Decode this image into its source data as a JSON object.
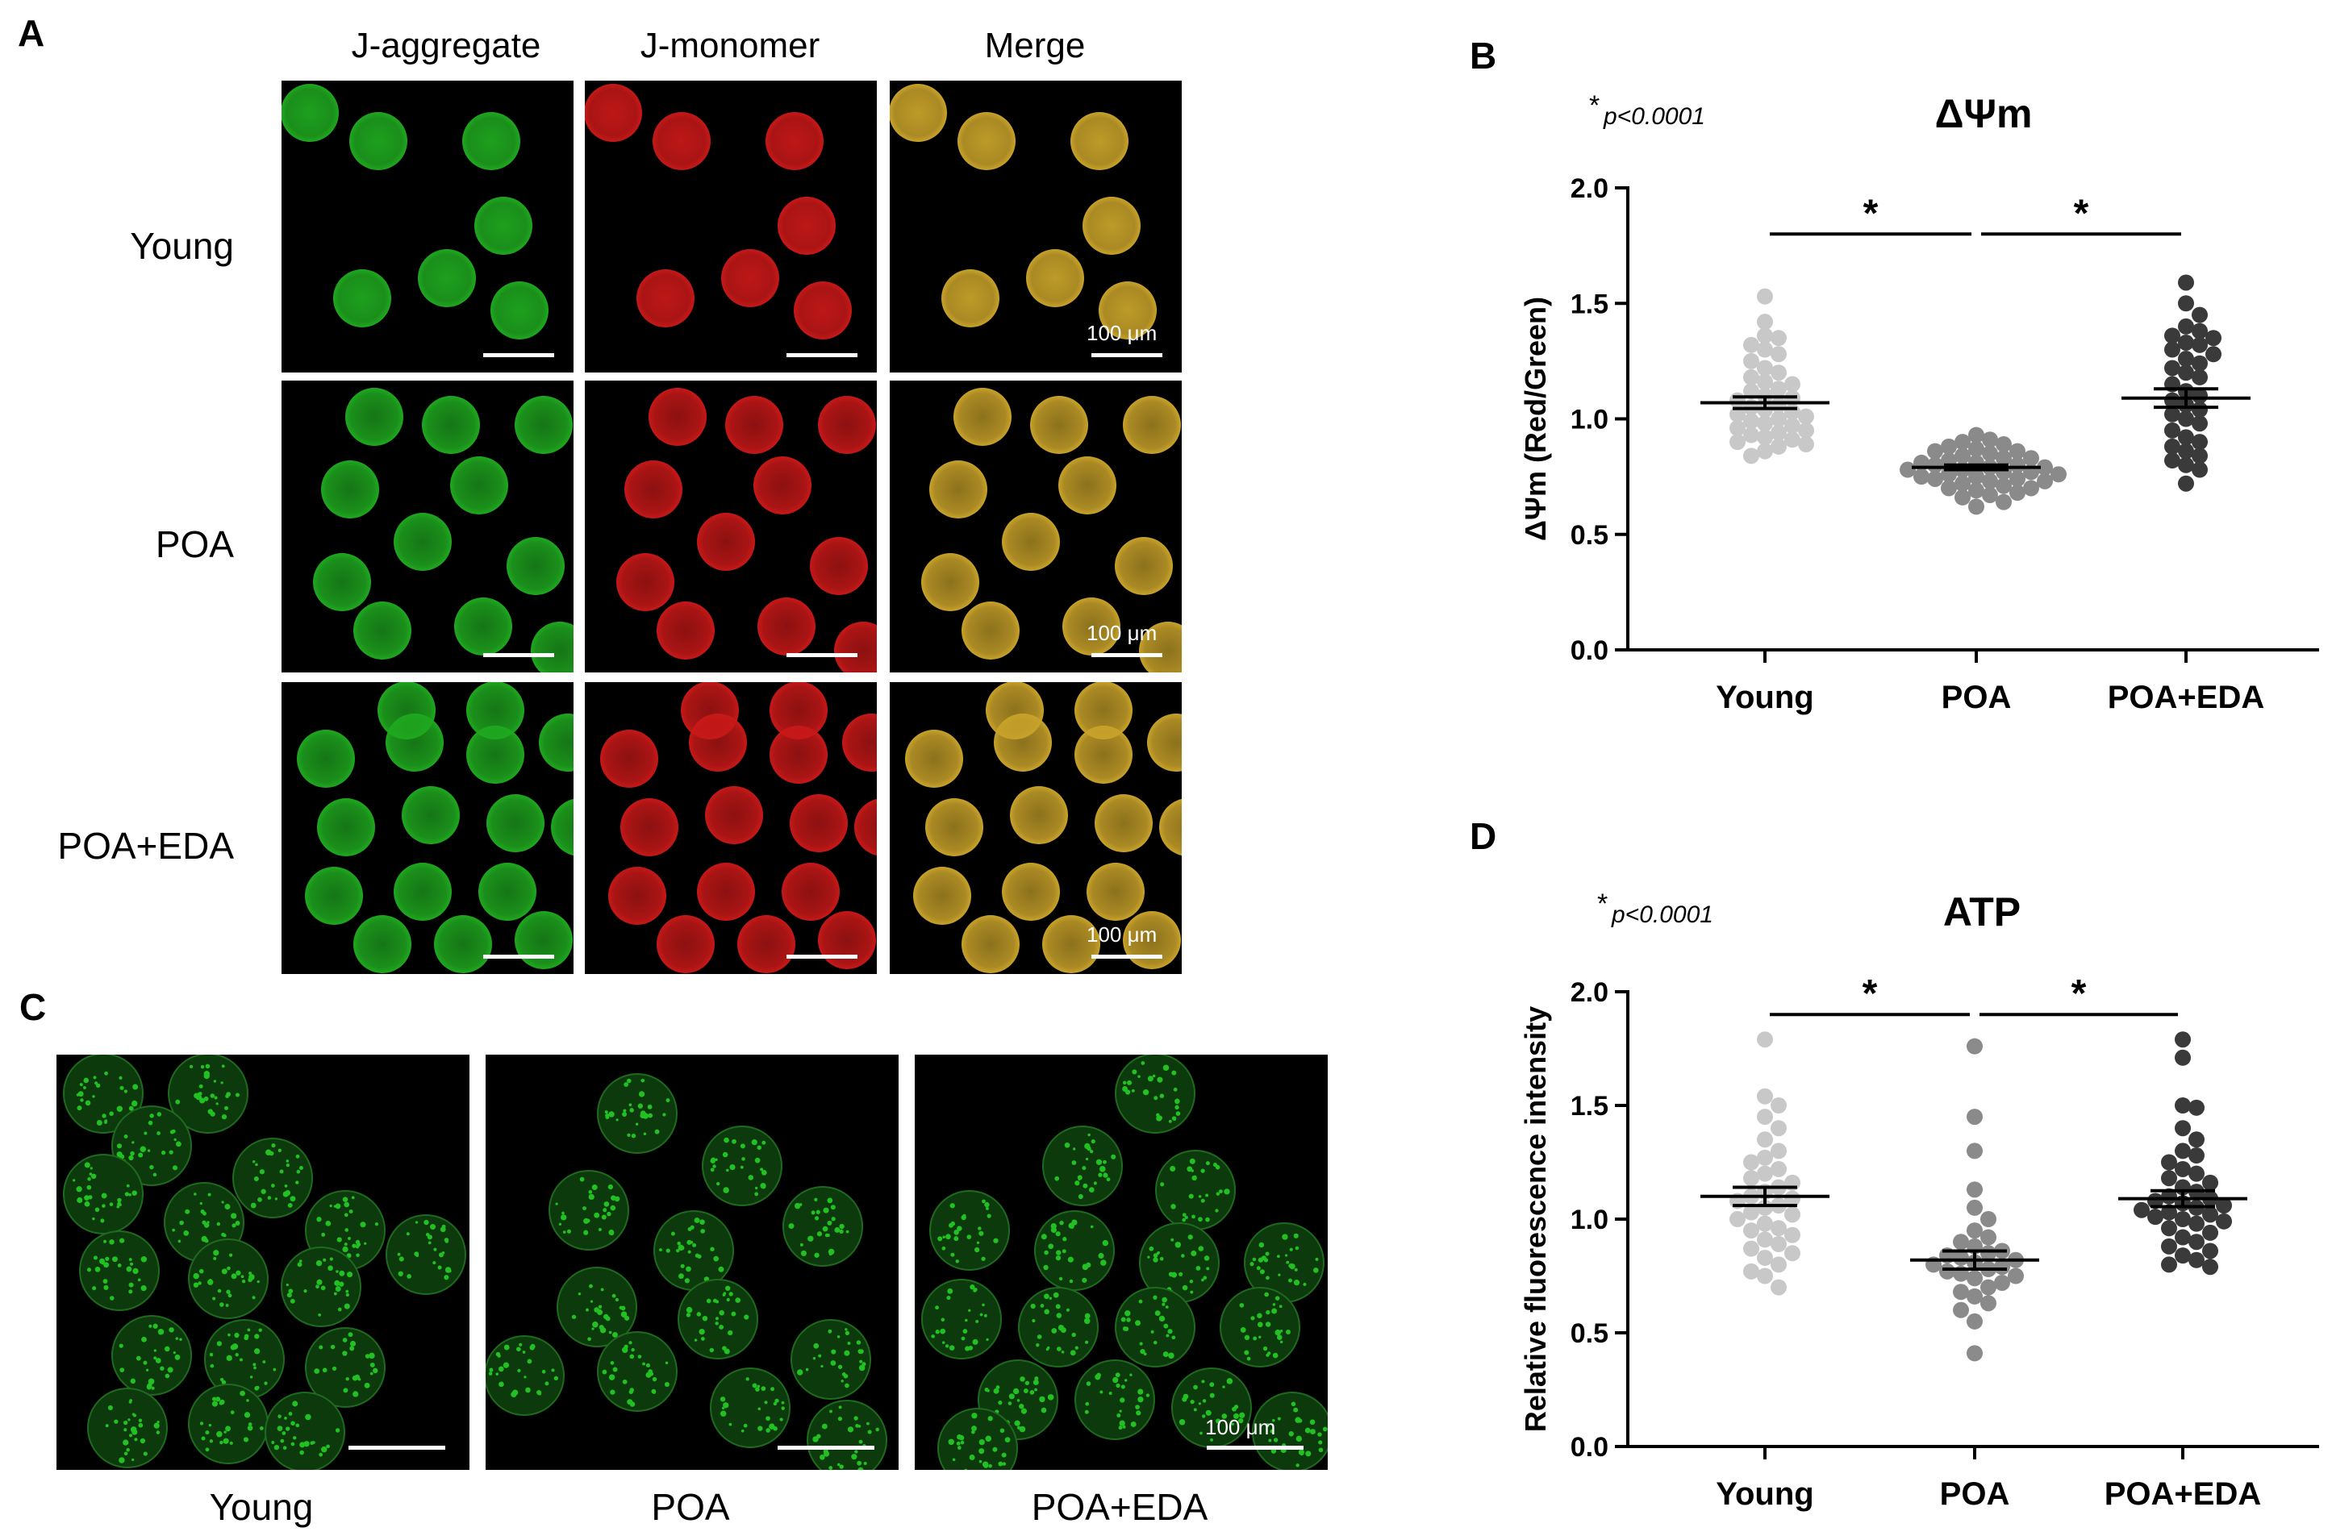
{
  "panel_letters": {
    "a": "A",
    "b": "B",
    "c": "C",
    "d": "D"
  },
  "panel_a": {
    "col_headers": [
      "J-aggregate",
      "J-monomer",
      "Merge"
    ],
    "row_labels": [
      "Young",
      "POA",
      "POA+EDA"
    ],
    "scale_label": "100 μm",
    "colors": {
      "aggregate": "#1fa81f",
      "monomer": "#c81818",
      "merge": "#c8a22a"
    }
  },
  "panel_c": {
    "labels": [
      "Young",
      "POA",
      "POA+EDA"
    ],
    "scale_label": "100 μm",
    "color": "#22c022"
  },
  "chart_data": [
    {
      "type": "scatter",
      "panel": "B",
      "title": "ΔΨm",
      "stat_note_star": "*",
      "stat_note": "p<0.0001",
      "ylabel": "ΔΨm (Red/Green)",
      "xlabel": "",
      "categories": [
        "Young",
        "POA",
        "POA+EDA"
      ],
      "ylim": [
        0,
        2.0
      ],
      "yticks": [
        0.0,
        0.5,
        1.0,
        1.5,
        2.0
      ],
      "ytick_labels": [
        "0.0",
        "0.5",
        "1.0",
        "1.5",
        "2.0"
      ],
      "means": [
        1.07,
        0.79,
        1.09
      ],
      "sem": [
        0.025,
        0.01,
        0.04
      ],
      "significance": [
        {
          "from": 0,
          "to": 1,
          "label": "*",
          "y": 1.8
        },
        {
          "from": 1,
          "to": 2,
          "label": "*",
          "y": 1.8
        }
      ],
      "colors": [
        "#c8c8c8",
        "#8a8a8a",
        "#3a3a3a"
      ],
      "series": [
        {
          "name": "Young",
          "values": [
            1.53,
            1.42,
            1.36,
            1.35,
            1.32,
            1.3,
            1.28,
            1.25,
            1.22,
            1.2,
            1.18,
            1.16,
            1.15,
            1.13,
            1.12,
            1.1,
            1.09,
            1.08,
            1.06,
            1.05,
            1.04,
            1.03,
            1.02,
            1.01,
            1.0,
            0.99,
            0.98,
            0.97,
            0.96,
            0.95,
            0.94,
            0.93,
            0.92,
            0.91,
            0.9,
            0.89,
            0.88,
            0.86,
            0.84
          ]
        },
        {
          "name": "POA",
          "values": [
            0.93,
            0.91,
            0.9,
            0.89,
            0.88,
            0.87,
            0.86,
            0.86,
            0.85,
            0.84,
            0.83,
            0.83,
            0.82,
            0.81,
            0.81,
            0.8,
            0.8,
            0.79,
            0.79,
            0.78,
            0.78,
            0.77,
            0.77,
            0.76,
            0.76,
            0.75,
            0.75,
            0.74,
            0.74,
            0.73,
            0.73,
            0.72,
            0.71,
            0.7,
            0.7,
            0.69,
            0.68,
            0.67,
            0.66,
            0.64,
            0.62
          ]
        },
        {
          "name": "POA+EDA",
          "values": [
            1.59,
            1.5,
            1.45,
            1.4,
            1.38,
            1.36,
            1.35,
            1.33,
            1.32,
            1.3,
            1.28,
            1.26,
            1.24,
            1.22,
            1.2,
            1.18,
            1.15,
            1.12,
            1.1,
            1.08,
            1.06,
            1.04,
            1.02,
            1.0,
            0.98,
            0.95,
            0.92,
            0.9,
            0.88,
            0.86,
            0.84,
            0.82,
            0.8,
            0.78,
            0.72
          ]
        }
      ]
    },
    {
      "type": "scatter",
      "panel": "D",
      "title": "ATP",
      "stat_note_star": "*",
      "stat_note": "p<0.0001",
      "ylabel": "Relative fluorescence intensity",
      "xlabel": "",
      "categories": [
        "Young",
        "POA",
        "POA+EDA"
      ],
      "ylim": [
        0,
        2.0
      ],
      "yticks": [
        0.0,
        0.5,
        1.0,
        1.5,
        2.0
      ],
      "ytick_labels": [
        "0.0",
        "0.5",
        "1.0",
        "1.5",
        "2.0"
      ],
      "means": [
        1.1,
        0.82,
        1.09
      ],
      "sem": [
        0.04,
        0.04,
        0.035
      ],
      "significance": [
        {
          "from": 0,
          "to": 1,
          "label": "*",
          "y": 1.9
        },
        {
          "from": 1,
          "to": 2,
          "label": "*",
          "y": 1.9
        }
      ],
      "colors": [
        "#c8c8c8",
        "#8a8a8a",
        "#3a3a3a"
      ],
      "series": [
        {
          "name": "Young",
          "values": [
            1.79,
            1.54,
            1.5,
            1.45,
            1.4,
            1.35,
            1.3,
            1.27,
            1.25,
            1.22,
            1.2,
            1.18,
            1.16,
            1.14,
            1.12,
            1.1,
            1.09,
            1.08,
            1.06,
            1.05,
            1.03,
            1.02,
            1.0,
            0.98,
            0.96,
            0.95,
            0.93,
            0.91,
            0.89,
            0.87,
            0.85,
            0.83,
            0.8,
            0.77,
            0.75,
            0.7
          ]
        },
        {
          "name": "POA",
          "values": [
            1.76,
            1.45,
            1.3,
            1.13,
            1.05,
            1.0,
            0.95,
            0.92,
            0.9,
            0.88,
            0.86,
            0.85,
            0.84,
            0.83,
            0.82,
            0.81,
            0.8,
            0.79,
            0.78,
            0.77,
            0.76,
            0.75,
            0.74,
            0.72,
            0.7,
            0.68,
            0.66,
            0.63,
            0.6,
            0.55,
            0.41
          ]
        },
        {
          "name": "POA+EDA",
          "values": [
            1.79,
            1.71,
            1.5,
            1.49,
            1.4,
            1.35,
            1.3,
            1.28,
            1.25,
            1.22,
            1.2,
            1.18,
            1.16,
            1.14,
            1.12,
            1.1,
            1.09,
            1.08,
            1.07,
            1.06,
            1.05,
            1.04,
            1.03,
            1.02,
            1.01,
            1.0,
            0.99,
            0.98,
            0.96,
            0.94,
            0.92,
            0.9,
            0.88,
            0.86,
            0.84,
            0.82,
            0.8,
            0.79
          ]
        }
      ]
    }
  ]
}
